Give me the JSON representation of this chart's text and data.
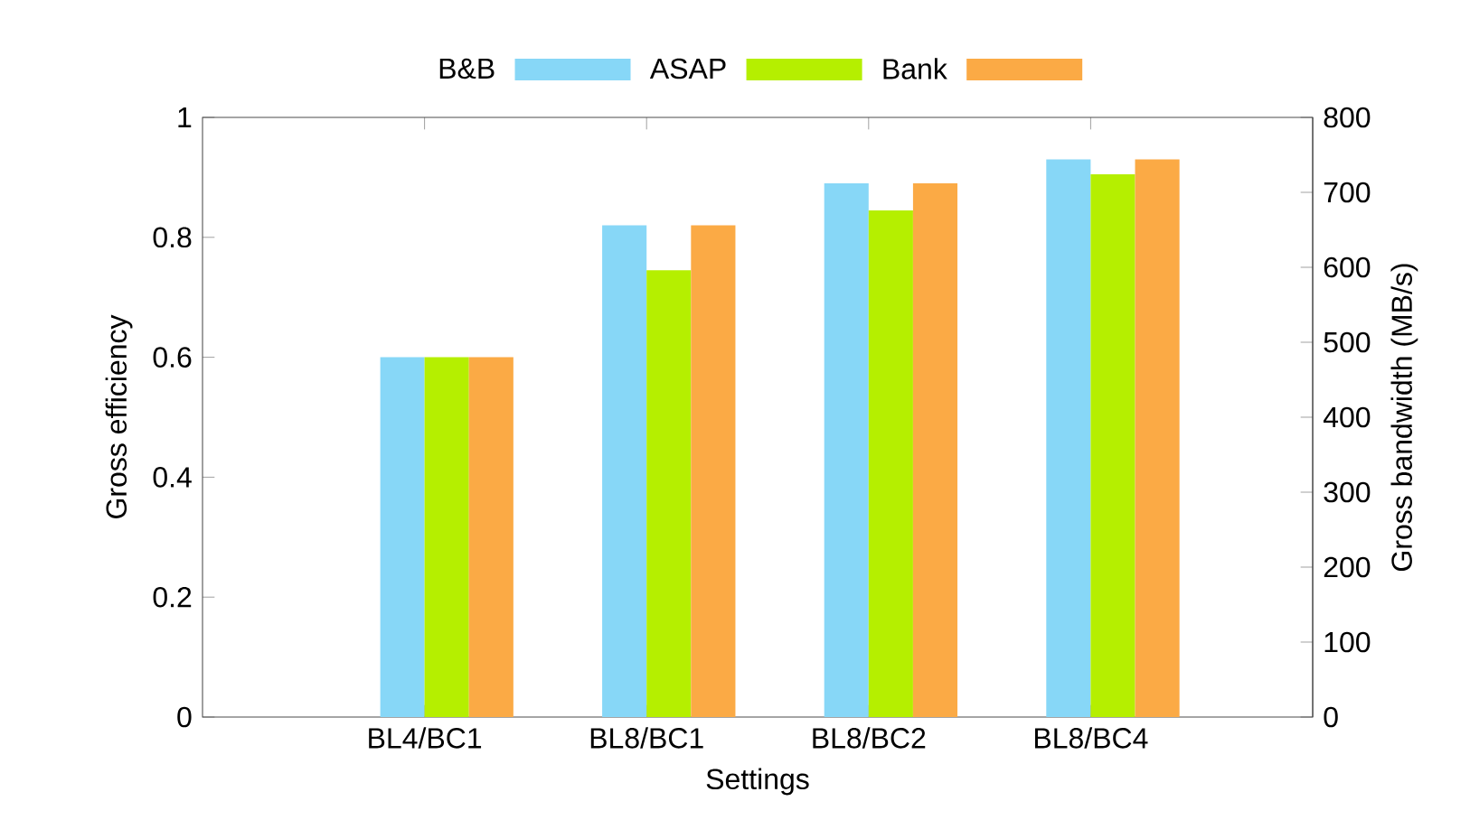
{
  "chart_data": {
    "type": "bar",
    "xlabel": "Settings",
    "ylabel": "Gross efficiency",
    "y2label": "Gross bandwidth (MB/s)",
    "categories": [
      "BL4/BC1",
      "BL8/BC1",
      "BL8/BC2",
      "BL8/BC4"
    ],
    "series": [
      {
        "name": "B&B",
        "color": "#87d7f7",
        "values": [
          0.6,
          0.82,
          0.89,
          0.93
        ]
      },
      {
        "name": "ASAP",
        "color": "#b5ef00",
        "values": [
          0.6,
          0.745,
          0.845,
          0.905
        ]
      },
      {
        "name": "Bank",
        "color": "#fbaa45",
        "values": [
          0.6,
          0.82,
          0.89,
          0.93
        ]
      }
    ],
    "ylim": [
      0,
      1
    ],
    "yticks": [
      0,
      0.2,
      0.4,
      0.6,
      0.8,
      1
    ],
    "y2lim": [
      0,
      800
    ],
    "y2ticks": [
      0,
      100,
      200,
      300,
      400,
      500,
      600,
      700,
      800
    ],
    "legend": "top",
    "grid": false
  }
}
